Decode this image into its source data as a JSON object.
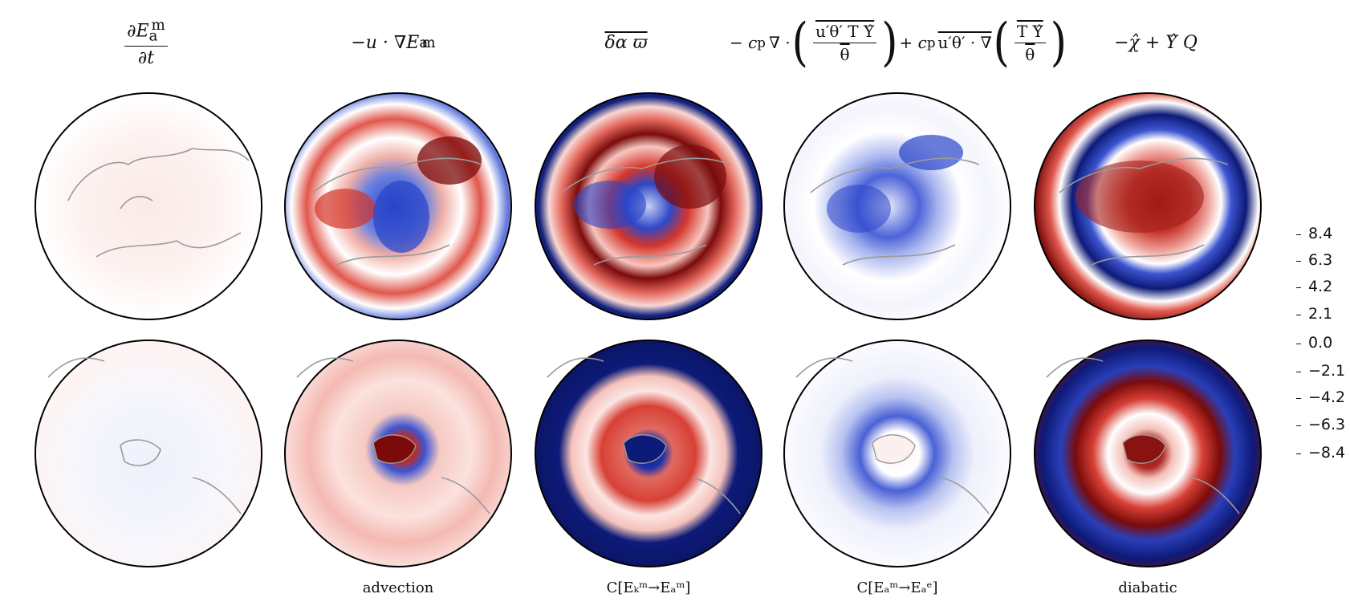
{
  "column_titles": {
    "col1": {
      "numerator": "∂E",
      "num_sub": "a",
      "num_sup": "m",
      "denominator": "∂t"
    },
    "col2": {
      "text": "−u · ∇E",
      "sub": "a",
      "sup": "m"
    },
    "col3": {
      "text": "δα ϖ"
    },
    "col4": {
      "lead": "− c",
      "lead_sub": "p",
      "op": "∇ ·",
      "inner_num": "u′θ′ T Υ̂",
      "inner_den": "θ",
      "mid": "+ c",
      "mid_sub": "p",
      "mid_op": "u′θ′ · ∇",
      "tail_num": "T Υ̂",
      "tail_den": "θ"
    },
    "col5": {
      "text": "−χ̂ + Υ̂ Q"
    }
  },
  "bottom_labels": {
    "col2": "advection",
    "col3": "C[Eₖᵐ→Eₐᵐ]",
    "col4": "C[Eₐᵐ→Eₐᵉ]",
    "col5": "diabatic"
  },
  "colorbar": {
    "ticks": [
      "8.4",
      "6.3",
      "4.2",
      "2.1",
      "0.0",
      "−2.1",
      "−4.2",
      "−6.3",
      "−8.4"
    ],
    "colormap": [
      "#08116a",
      "#1f34c4",
      "#7a8ee6",
      "#ffffff",
      "#f08a80",
      "#d42a20",
      "#6a0a0a"
    ]
  },
  "colors": {
    "red_dark": "#7b0b0b",
    "red": "#d4352a",
    "red_light": "#f7c6c0",
    "blue_dark": "#0d1a78",
    "blue": "#2a44c9",
    "blue_light": "#c7d0f3",
    "coast": "#9a9a9a"
  }
}
